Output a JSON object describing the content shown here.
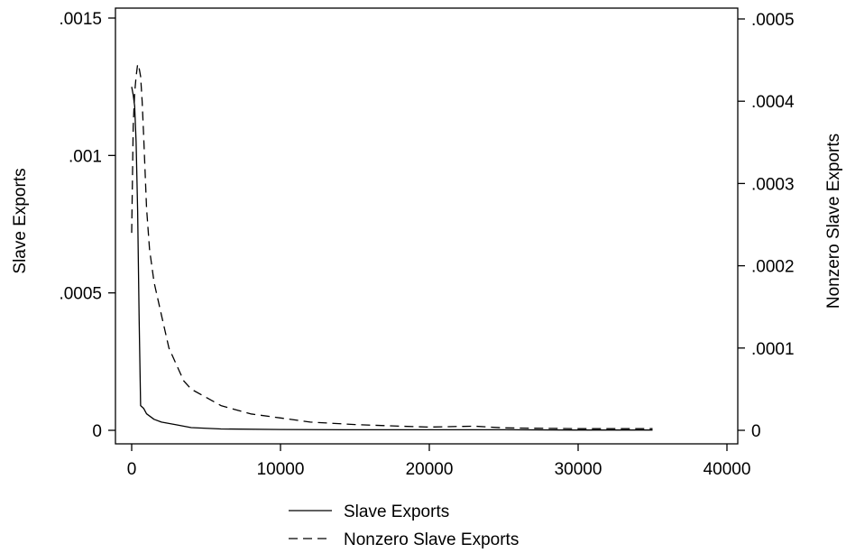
{
  "chart_data": {
    "type": "line",
    "title": "",
    "xlabel": "",
    "ylabel_left": "Slave Exports",
    "ylabel_right": "Nonzero Slave Exports",
    "xlim": [
      0,
      40000
    ],
    "ylim_left": [
      0,
      0.0015
    ],
    "ylim_right": [
      0,
      0.0005
    ],
    "x_ticks": [
      {
        "value": 0,
        "label": "0"
      },
      {
        "value": 10000,
        "label": "10000"
      },
      {
        "value": 20000,
        "label": "20000"
      },
      {
        "value": 30000,
        "label": "30000"
      },
      {
        "value": 40000,
        "label": "40000"
      }
    ],
    "y_ticks_left": [
      {
        "value": 0,
        "label": "0"
      },
      {
        "value": 0.0005,
        "label": ".0005"
      },
      {
        "value": 0.001,
        "label": ".001"
      },
      {
        "value": 0.0015,
        "label": ".0015"
      }
    ],
    "y_ticks_right": [
      {
        "value": 0,
        "label": "0"
      },
      {
        "value": 0.0001,
        "label": ".0001"
      },
      {
        "value": 0.0002,
        "label": ".0002"
      },
      {
        "value": 0.0003,
        "label": ".0003"
      },
      {
        "value": 0.0004,
        "label": ".0004"
      },
      {
        "value": 0.0005,
        "label": ".0005"
      }
    ],
    "grid": false,
    "legend_position": "bottom",
    "series": [
      {
        "name": "Slave Exports",
        "axis": "left",
        "style": "solid",
        "color": "#000000",
        "x": [
          0,
          100,
          200,
          300,
          400,
          500,
          600,
          800,
          1000,
          1500,
          2000,
          3000,
          4000,
          6000,
          10000,
          15000,
          20000,
          25000,
          30000,
          35000
        ],
        "y": [
          0.00125,
          0.00122,
          0.00118,
          0.00105,
          0.0008,
          0.0004,
          9e-05,
          8e-05,
          6e-05,
          4e-05,
          3e-05,
          2e-05,
          1e-05,
          5e-06,
          3e-06,
          2e-06,
          2e-06,
          2e-06,
          1e-06,
          1e-06
        ]
      },
      {
        "name": "Nonzero Slave Exports",
        "axis": "right",
        "style": "dashed",
        "color": "#000000",
        "x": [
          0,
          100,
          200,
          300,
          400,
          500,
          600,
          700,
          800,
          1000,
          1200,
          1500,
          2000,
          2500,
          3000,
          3500,
          4000,
          5000,
          6000,
          7000,
          8000,
          10000,
          12000,
          15000,
          18000,
          20000,
          23000,
          25000,
          30000,
          35000
        ],
        "y": [
          0.00024,
          0.00037,
          0.00041,
          0.00043,
          0.000445,
          0.00044,
          0.00043,
          0.0004,
          0.00036,
          0.00027,
          0.00022,
          0.00018,
          0.00014,
          0.0001,
          8e-05,
          6e-05,
          5e-05,
          4e-05,
          3e-05,
          2.5e-05,
          2e-05,
          1.5e-05,
          1e-05,
          7e-06,
          5e-06,
          4e-06,
          5e-06,
          3e-06,
          2e-06,
          2e-06
        ]
      }
    ]
  }
}
